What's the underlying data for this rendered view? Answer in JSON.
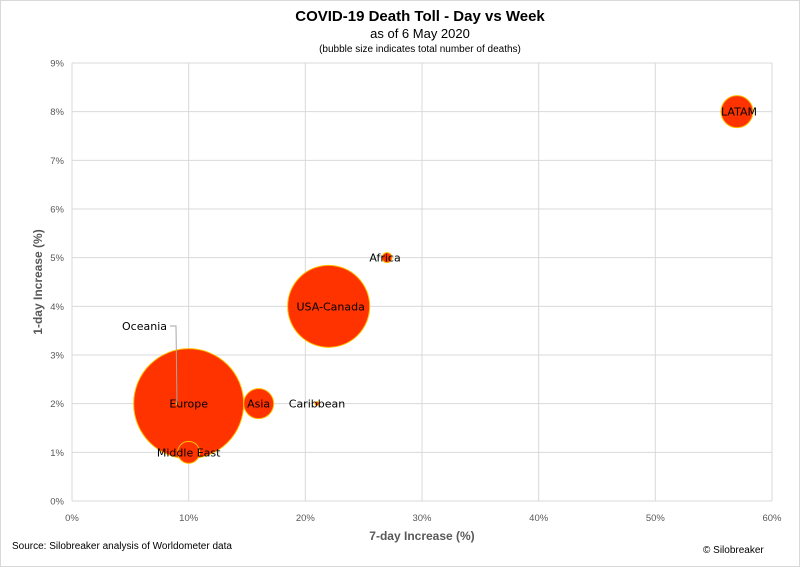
{
  "chart_data": {
    "type": "scatter",
    "title": "COVID-19 Death Toll - Day vs Week",
    "subtitle": "as of 6 May 2020",
    "note": "(bubble size indicates total number of deaths)",
    "xlabel": "7-day Increase (%)",
    "ylabel": "1-day Increase (%)",
    "xlim": [
      0,
      60
    ],
    "ylim": [
      0,
      9
    ],
    "x_ticks": [
      "0%",
      "10%",
      "20%",
      "30%",
      "40%",
      "50%",
      "60%"
    ],
    "y_ticks": [
      "0%",
      "1%",
      "2%",
      "3%",
      "4%",
      "5%",
      "6%",
      "7%",
      "8%",
      "9%"
    ],
    "grid": true,
    "bubble_color": "#ff3300",
    "bubble_edge_color": "#ffc000",
    "points": [
      {
        "label": "Europe",
        "x": 10,
        "y": 2,
        "r": 55
      },
      {
        "label": "USA-Canada",
        "x": 22,
        "y": 4,
        "r": 41
      },
      {
        "label": "LATAM",
        "x": 57,
        "y": 8,
        "r": 16
      },
      {
        "label": "Asia",
        "x": 16,
        "y": 2,
        "r": 15
      },
      {
        "label": "Middle East",
        "x": 10,
        "y": 1,
        "r": 11
      },
      {
        "label": "Africa",
        "x": 27,
        "y": 5,
        "r": 5
      },
      {
        "label": "Caribbean",
        "x": 21,
        "y": 2,
        "r": 2
      },
      {
        "label": "Oceania",
        "x": 9,
        "y": 2,
        "r": 1
      }
    ]
  },
  "footer": {
    "source": "Source: Silobreaker analysis of Worldometer data",
    "credit": "© Silobreaker"
  }
}
